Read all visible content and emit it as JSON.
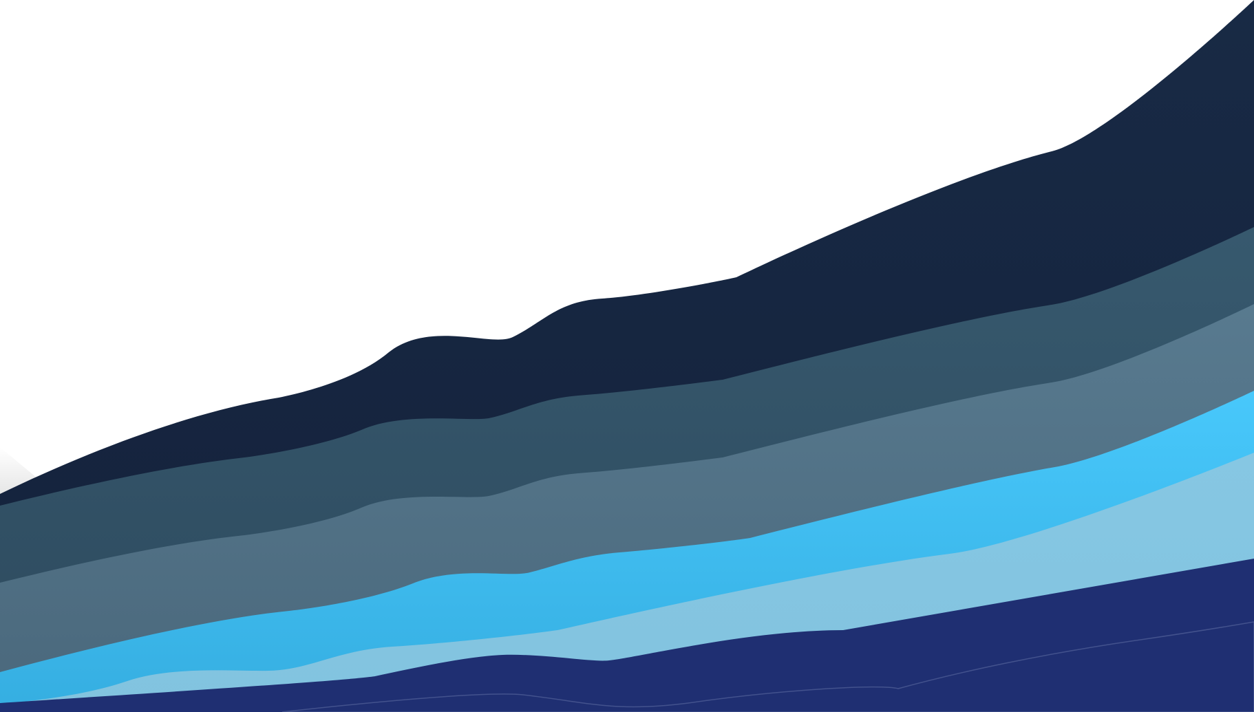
{
  "artwork": {
    "kind": "layered-wave-background",
    "background_color": "#ffffff",
    "layers": [
      {
        "name": "navy-top-wave",
        "color_top": "#182a45",
        "color_bottom": "#14213b"
      },
      {
        "name": "slate-wave",
        "color_top": "#37596e",
        "color_bottom": "#2d4a5e"
      },
      {
        "name": "steel-blue-wave",
        "color_top": "#587a8f",
        "color_bottom": "#4a687c"
      },
      {
        "name": "bright-sky-wave",
        "color_top": "#48c8fb",
        "color_bottom": "#35aee1"
      },
      {
        "name": "pale-sky-wave",
        "color_top": "#86c7e3",
        "color_bottom": "#82c3df"
      },
      {
        "name": "deep-indigo-wave",
        "color_top": "#1f2f72",
        "color_bottom": "#1f2f72"
      }
    ]
  }
}
